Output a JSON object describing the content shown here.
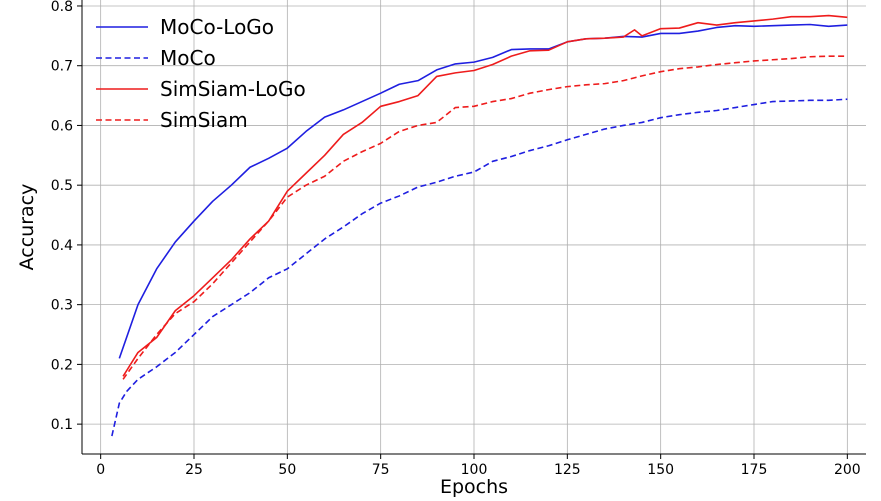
{
  "chart_data": {
    "type": "line",
    "xlabel": "Epochs",
    "ylabel": "Accuracy",
    "xlim": [
      -5,
      205
    ],
    "ylim": [
      0.05,
      0.81
    ],
    "xticks": [
      0,
      25,
      50,
      75,
      100,
      125,
      150,
      175,
      200
    ],
    "yticks": [
      0.1,
      0.2,
      0.3,
      0.4,
      0.5,
      0.6,
      0.7,
      0.8
    ],
    "grid": true,
    "legend_position": "top-left",
    "series": [
      {
        "name": "MoCo-LoGo",
        "color": "#1f1fe0",
        "style": "solid",
        "x": [
          5,
          10,
          15,
          20,
          25,
          30,
          35,
          40,
          45,
          50,
          55,
          60,
          65,
          70,
          75,
          80,
          85,
          90,
          95,
          100,
          105,
          110,
          115,
          120,
          125,
          130,
          135,
          140,
          145,
          150,
          155,
          160,
          165,
          170,
          175,
          180,
          185,
          190,
          195,
          200
        ],
        "y": [
          0.21,
          0.3,
          0.36,
          0.405,
          0.44,
          0.473,
          0.5,
          0.53,
          0.545,
          0.562,
          0.59,
          0.614,
          0.626,
          0.64,
          0.654,
          0.669,
          0.675,
          0.693,
          0.703,
          0.706,
          0.714,
          0.727,
          0.728,
          0.728,
          0.74,
          0.745,
          0.746,
          0.749,
          0.748,
          0.754,
          0.754,
          0.758,
          0.764,
          0.767,
          0.766,
          0.767,
          0.768,
          0.769,
          0.766,
          0.768
        ]
      },
      {
        "name": "MoCo",
        "color": "#1f1fe0",
        "style": "dashed",
        "x": [
          3,
          5,
          7,
          10,
          15,
          20,
          25,
          30,
          35,
          40,
          45,
          50,
          55,
          60,
          65,
          70,
          75,
          80,
          85,
          90,
          95,
          100,
          105,
          110,
          115,
          120,
          125,
          130,
          135,
          140,
          145,
          150,
          155,
          160,
          165,
          170,
          175,
          180,
          185,
          190,
          195,
          200
        ],
        "y": [
          0.08,
          0.135,
          0.155,
          0.175,
          0.196,
          0.22,
          0.25,
          0.28,
          0.3,
          0.32,
          0.345,
          0.36,
          0.385,
          0.41,
          0.43,
          0.452,
          0.47,
          0.482,
          0.497,
          0.505,
          0.515,
          0.522,
          0.54,
          0.548,
          0.558,
          0.566,
          0.576,
          0.585,
          0.594,
          0.6,
          0.605,
          0.613,
          0.618,
          0.622,
          0.625,
          0.63,
          0.635,
          0.64,
          0.641,
          0.642,
          0.642,
          0.644
        ]
      },
      {
        "name": "SimSiam-LoGo",
        "color": "#ee1c1c",
        "style": "solid",
        "x": [
          6,
          10,
          15,
          20,
          25,
          30,
          35,
          40,
          45,
          50,
          55,
          60,
          65,
          70,
          75,
          80,
          85,
          90,
          95,
          100,
          105,
          110,
          115,
          120,
          125,
          130,
          135,
          140,
          143,
          145,
          150,
          155,
          160,
          165,
          170,
          175,
          180,
          185,
          190,
          195,
          200
        ],
        "y": [
          0.18,
          0.22,
          0.245,
          0.29,
          0.315,
          0.345,
          0.375,
          0.41,
          0.44,
          0.49,
          0.52,
          0.55,
          0.585,
          0.605,
          0.632,
          0.64,
          0.65,
          0.682,
          0.688,
          0.692,
          0.702,
          0.716,
          0.725,
          0.726,
          0.74,
          0.745,
          0.746,
          0.748,
          0.76,
          0.75,
          0.762,
          0.763,
          0.772,
          0.768,
          0.772,
          0.775,
          0.778,
          0.782,
          0.782,
          0.784,
          0.781
        ]
      },
      {
        "name": "SimSiam",
        "color": "#ee1c1c",
        "style": "dashed",
        "x": [
          6,
          10,
          15,
          20,
          25,
          30,
          35,
          40,
          45,
          50,
          55,
          60,
          65,
          70,
          75,
          80,
          85,
          90,
          95,
          100,
          105,
          110,
          115,
          120,
          125,
          130,
          135,
          140,
          145,
          150,
          155,
          160,
          165,
          170,
          175,
          180,
          185,
          190,
          195,
          200
        ],
        "y": [
          0.175,
          0.21,
          0.25,
          0.285,
          0.305,
          0.335,
          0.37,
          0.405,
          0.44,
          0.48,
          0.5,
          0.515,
          0.54,
          0.556,
          0.57,
          0.59,
          0.6,
          0.605,
          0.63,
          0.632,
          0.64,
          0.645,
          0.654,
          0.66,
          0.665,
          0.668,
          0.67,
          0.675,
          0.683,
          0.69,
          0.695,
          0.698,
          0.702,
          0.705,
          0.708,
          0.71,
          0.712,
          0.715,
          0.716,
          0.716
        ]
      }
    ]
  }
}
